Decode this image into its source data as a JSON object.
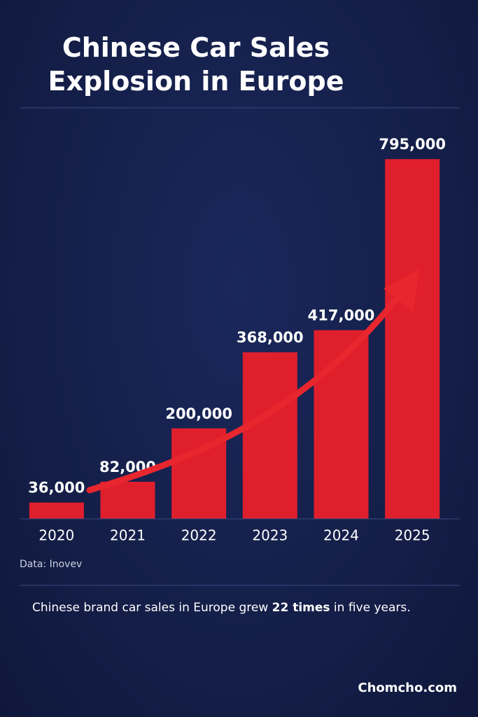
{
  "chart_data": {
    "type": "bar",
    "title": "Chinese Car Sales Explosion in Europe",
    "categories": [
      "2020",
      "2021",
      "2022",
      "2023",
      "2024",
      "2025"
    ],
    "values": [
      36000,
      82000,
      200000,
      368000,
      417000,
      795000
    ],
    "value_labels": [
      "36,000",
      "82,000",
      "200,000",
      "368,000",
      "417,000",
      "795,000"
    ],
    "color": "#e01f2d",
    "ylim": [
      0,
      800000
    ],
    "source": "Data: Inovev",
    "note": [
      "Chinese brand car sales in Europe grew ",
      "22 times",
      " in five years."
    ],
    "brand": "Chomcho.com"
  }
}
